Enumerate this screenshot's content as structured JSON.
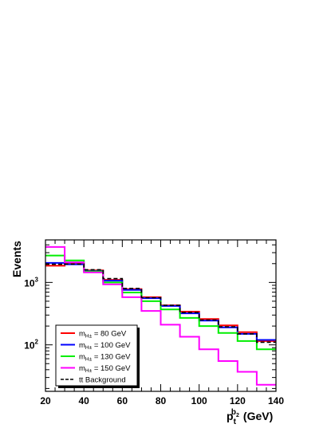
{
  "chart_data": {
    "type": "line",
    "step": true,
    "ylabel": "Events",
    "xlabel": {
      "main": "p",
      "sub": "t",
      "sup": "b",
      "supsub": "2",
      "unit": "(GeV)"
    },
    "x_bin_edges": [
      20,
      30,
      40,
      50,
      60,
      70,
      80,
      90,
      100,
      110,
      120,
      130,
      140
    ],
    "xlim": [
      20,
      140
    ],
    "ylim": [
      18,
      4800
    ],
    "yscale": "log",
    "x_ticks": [
      20,
      40,
      60,
      80,
      100,
      120,
      140
    ],
    "y_ticks": [
      {
        "value": 100,
        "base": "10",
        "exp": "2"
      },
      {
        "value": 1000,
        "base": "10",
        "exp": "3"
      }
    ],
    "legend_position": "bottom-left",
    "series": [
      {
        "name": "m_{H±} = 80 GeV",
        "label_main": "m",
        "label_sub": "H±",
        "label_rest": " = 80 GeV",
        "color": "#ff0000",
        "dashed": false,
        "values": [
          1850,
          1980,
          1560,
          1100,
          780,
          580,
          430,
          340,
          260,
          205,
          160,
          115
        ]
      },
      {
        "name": "m_{H±} = 100 GeV",
        "label_main": "m",
        "label_sub": "H±",
        "label_rest": " = 100 GeV",
        "color": "#0000ff",
        "dashed": false,
        "values": [
          2050,
          1950,
          1520,
          1070,
          760,
          560,
          420,
          320,
          245,
          190,
          150,
          120
        ]
      },
      {
        "name": "m_{H±} = 130 GeV",
        "label_main": "m",
        "label_sub": "H±",
        "label_rest": " = 130 GeV",
        "color": "#00ee00",
        "dashed": false,
        "values": [
          2700,
          2250,
          1500,
          1000,
          690,
          500,
          370,
          270,
          200,
          155,
          115,
          85
        ]
      },
      {
        "name": "m_{H±} = 150 GeV",
        "label_main": "m",
        "label_sub": "H±",
        "label_rest": " = 150 GeV",
        "color": "#ff00ff",
        "dashed": false,
        "values": [
          3700,
          2100,
          1450,
          930,
          580,
          350,
          210,
          135,
          85,
          55,
          37,
          23
        ]
      },
      {
        "name": "tt Background",
        "label_main": "tt",
        "label_sub": "",
        "label_rest": " Background",
        "color": "#000000",
        "dashed": true,
        "values": [
          1950,
          1970,
          1600,
          1150,
          800,
          570,
          430,
          330,
          250,
          195,
          150,
          110
        ]
      }
    ]
  }
}
